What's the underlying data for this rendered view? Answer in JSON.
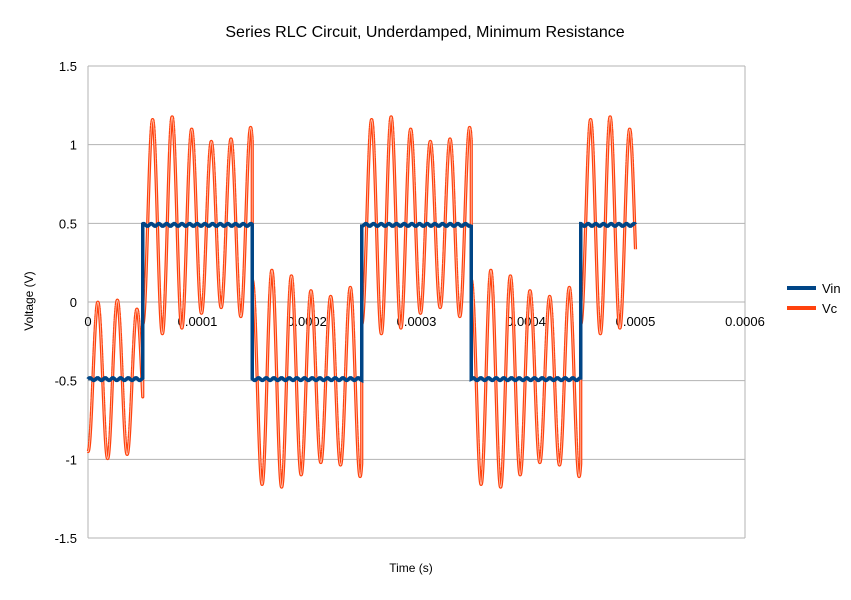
{
  "chart_data": {
    "type": "line",
    "title": "Series RLC Circuit, Underdamped, Minimum Resistance",
    "xlabel": "Time (s)",
    "ylabel": "Voltage (V)",
    "xlim": [
      0,
      0.0006
    ],
    "ylim": [
      -1.5,
      1.5
    ],
    "x_ticks": [
      "0",
      "0.0001",
      "0.0002",
      "0.0003",
      "0.0004",
      "0.0005",
      "0.0006"
    ],
    "y_ticks": [
      "1.5",
      "1",
      "0.5",
      "0",
      "-0.5",
      "-1",
      "-1.5"
    ],
    "grid": "horizontal",
    "legend": "right",
    "square_wave": {
      "amplitude": 0.49,
      "half_period": 0.0001,
      "first_rise": 5e-05,
      "x_end": 0.0005
    },
    "ringing": {
      "ring_period": 1.79e-05,
      "peak_overshoot": 1.12,
      "first_trough": -0.95
    },
    "series": [
      {
        "name": "Vin",
        "color": "#004586",
        "description": "square wave input"
      },
      {
        "name": "Vc",
        "color": "#ff420e",
        "description": "capacitor voltage"
      }
    ]
  }
}
